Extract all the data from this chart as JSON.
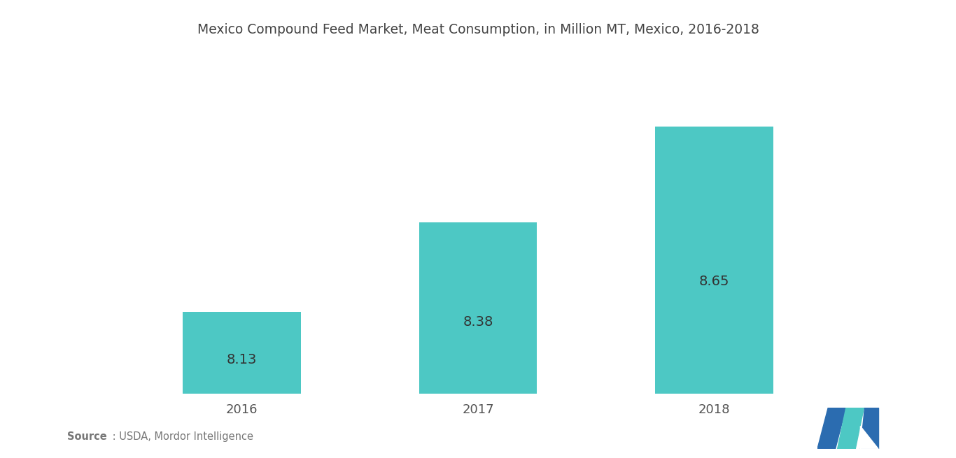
{
  "title": "Mexico Compound Feed Market, Meat Consumption, in Million MT, Mexico, 2016-2018",
  "categories": [
    "2016",
    "2017",
    "2018"
  ],
  "values": [
    8.13,
    8.38,
    8.65
  ],
  "bar_color": "#4DC8C4",
  "bar_labels": [
    "8.13",
    "8.38",
    "8.65"
  ],
  "label_color": "#333333",
  "title_fontsize": 13.5,
  "label_fontsize": 14,
  "tick_fontsize": 13,
  "source_bold": "Source",
  "source_rest": " : USDA, Mordor Intelligence",
  "background_color": "#ffffff",
  "ylim_min": 7.9,
  "ylim_max": 8.85,
  "bar_width": 0.5,
  "logo_dark": "#2B6CB0",
  "logo_teal": "#4DC8C4"
}
